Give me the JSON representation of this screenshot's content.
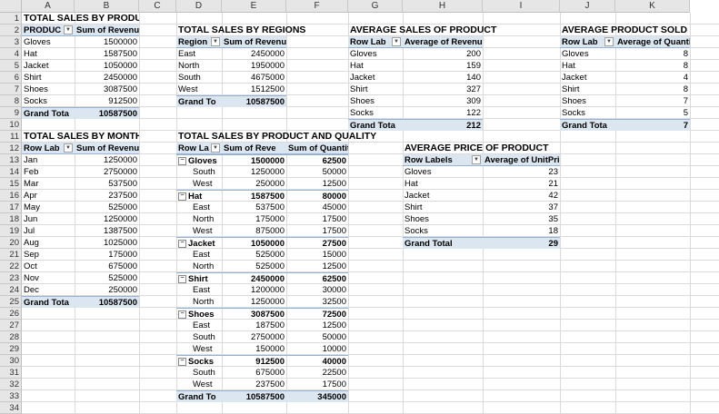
{
  "columns": [
    "A",
    "B",
    "C",
    "D",
    "E",
    "F",
    "G",
    "H",
    "I",
    "J",
    "K"
  ],
  "rows": [
    "1",
    "2",
    "3",
    "4",
    "5",
    "6",
    "7",
    "8",
    "9",
    "10",
    "11",
    "12",
    "13",
    "14",
    "15",
    "16",
    "17",
    "18",
    "19",
    "20",
    "21",
    "22",
    "23",
    "24",
    "25",
    "26",
    "27",
    "28",
    "29",
    "30",
    "31",
    "32",
    "33",
    "34"
  ],
  "pivot_product": {
    "title": "TOTAL SALES BY PRODUCT",
    "h1": "PRODUC",
    "h2": "Sum of Revenue",
    "rows": [
      [
        "Gloves",
        "1500000"
      ],
      [
        "Hat",
        "1587500"
      ],
      [
        "Jacket",
        "1050000"
      ],
      [
        "Shirt",
        "2450000"
      ],
      [
        "Shoes",
        "3087500"
      ],
      [
        "Socks",
        "912500"
      ]
    ],
    "total_label": "Grand Tota",
    "total": "10587500"
  },
  "pivot_regions": {
    "title": "TOTAL SALES BY REGIONS",
    "h1": "Region",
    "h2": "Sum of Revenue",
    "rows": [
      [
        "East",
        "2450000"
      ],
      [
        "North",
        "1950000"
      ],
      [
        "South",
        "4675000"
      ],
      [
        "West",
        "1512500"
      ]
    ],
    "total_label": "Grand To",
    "total": "10587500"
  },
  "pivot_avg_sales": {
    "title": "AVERAGE SALES OF PRODUCT",
    "h1": "Row Lab",
    "h2": "Average of Revenue",
    "rows": [
      [
        "Gloves",
        "200"
      ],
      [
        "Hat",
        "159"
      ],
      [
        "Jacket",
        "140"
      ],
      [
        "Shirt",
        "327"
      ],
      [
        "Shoes",
        "309"
      ],
      [
        "Socks",
        "122"
      ]
    ],
    "total_label": "Grand Tota",
    "total": "212"
  },
  "pivot_avg_sold": {
    "title": "AVERAGE PRODUCT SOLD",
    "h1": "Row Lab",
    "h2": "Average of Quantity",
    "rows": [
      [
        "Gloves",
        "8"
      ],
      [
        "Hat",
        "8"
      ],
      [
        "Jacket",
        "4"
      ],
      [
        "Shirt",
        "8"
      ],
      [
        "Shoes",
        "7"
      ],
      [
        "Socks",
        "5"
      ]
    ],
    "total_label": "Grand Tota",
    "total": "7"
  },
  "pivot_month": {
    "title": "TOTAL SALES BY MONTH",
    "h1": "Row Lab",
    "h2": "Sum of Revenue",
    "rows": [
      [
        "Jan",
        "1250000"
      ],
      [
        "Feb",
        "2750000"
      ],
      [
        "Mar",
        "537500"
      ],
      [
        "Apr",
        "237500"
      ],
      [
        "May",
        "525000"
      ],
      [
        "Jun",
        "1250000"
      ],
      [
        "Jul",
        "1387500"
      ],
      [
        "Aug",
        "1025000"
      ],
      [
        "Sep",
        "175000"
      ],
      [
        "Oct",
        "675000"
      ],
      [
        "Nov",
        "525000"
      ],
      [
        "Dec",
        "250000"
      ]
    ],
    "total_label": "Grand Tota",
    "total": "10587500"
  },
  "pivot_pq": {
    "title": "TOTAL SALES BY PRODUCT AND QUALITY",
    "h1": "Row La",
    "h2": "Sum of Reve",
    "h3": "Sum of Quantity",
    "rows": [
      [
        "g",
        "Gloves",
        "1500000",
        "62500"
      ],
      [
        "s",
        "South",
        "1250000",
        "50000"
      ],
      [
        "s",
        "West",
        "250000",
        "12500"
      ],
      [
        "g",
        "Hat",
        "1587500",
        "80000"
      ],
      [
        "s",
        "East",
        "537500",
        "45000"
      ],
      [
        "s",
        "North",
        "175000",
        "17500"
      ],
      [
        "s",
        "West",
        "875000",
        "17500"
      ],
      [
        "g",
        "Jacket",
        "1050000",
        "27500"
      ],
      [
        "s",
        "East",
        "525000",
        "15000"
      ],
      [
        "s",
        "North",
        "525000",
        "12500"
      ],
      [
        "g",
        "Shirt",
        "2450000",
        "62500"
      ],
      [
        "s",
        "East",
        "1200000",
        "30000"
      ],
      [
        "s",
        "North",
        "1250000",
        "32500"
      ],
      [
        "g",
        "Shoes",
        "3087500",
        "72500"
      ],
      [
        "s",
        "East",
        "187500",
        "12500"
      ],
      [
        "s",
        "South",
        "2750000",
        "50000"
      ],
      [
        "s",
        "West",
        "150000",
        "10000"
      ],
      [
        "g",
        "Socks",
        "912500",
        "40000"
      ],
      [
        "s",
        "South",
        "675000",
        "22500"
      ],
      [
        "s",
        "West",
        "237500",
        "17500"
      ]
    ],
    "total_label": "Grand To",
    "total": "10587500",
    "total2": "345000"
  },
  "pivot_price": {
    "title": "AVERAGE PRICE OF PRODUCT",
    "h1": "Row Labels",
    "h2": "Average of UnitPrice",
    "rows": [
      [
        "Gloves",
        "23"
      ],
      [
        "Hat",
        "21"
      ],
      [
        "Jacket",
        "42"
      ],
      [
        "Shirt",
        "37"
      ],
      [
        "Shoes",
        "35"
      ],
      [
        "Socks",
        "18"
      ]
    ],
    "total_label": "Grand Total",
    "total": "29"
  }
}
